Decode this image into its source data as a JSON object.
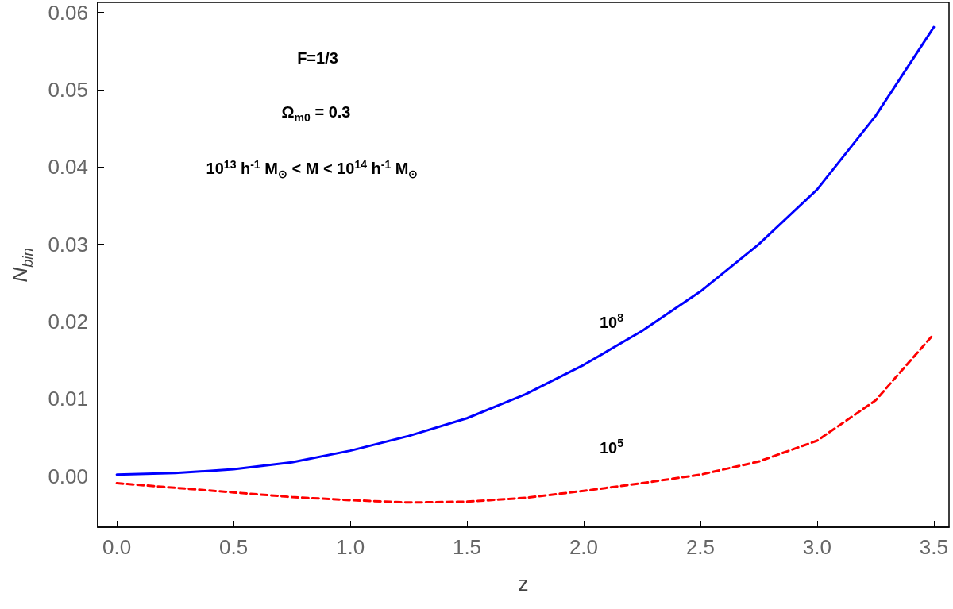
{
  "chart_data": {
    "type": "line",
    "xlabel": "z",
    "ylabel": "N$_{bin}$",
    "xlim": [
      -0.082,
      3.565
    ],
    "ylim": [
      -0.0066,
      0.0613
    ],
    "xticks": [
      {
        "value": 0,
        "label": "0.0"
      },
      {
        "value": 0.5,
        "label": "0.5"
      },
      {
        "value": 1,
        "label": "1.0"
      },
      {
        "value": 1.5,
        "label": "1.5"
      },
      {
        "value": 2,
        "label": "2.0"
      },
      {
        "value": 2.5,
        "label": "2.5"
      },
      {
        "value": 3,
        "label": "3.0"
      },
      {
        "value": 3.5,
        "label": "3.5"
      }
    ],
    "yticks": [
      {
        "value": 0,
        "label": "0.00"
      },
      {
        "value": 0.01,
        "label": "0.01"
      },
      {
        "value": 0.02,
        "label": "0.02"
      },
      {
        "value": 0.03,
        "label": "0.03"
      },
      {
        "value": 0.04,
        "label": "0.04"
      },
      {
        "value": 0.05,
        "label": "0.05"
      },
      {
        "value": 0.06,
        "label": "0.06"
      }
    ],
    "grid": false,
    "marker": "none",
    "x": [
      0,
      0.25,
      0.5,
      0.75,
      1,
      1.25,
      1.5,
      1.75,
      2,
      2.25,
      2.5,
      2.75,
      3,
      3.25,
      3.5
    ],
    "series": [
      {
        "name": "10$^{8}$",
        "color": "#0000ff",
        "line_style": "solid",
        "values": [
          0.0002,
          0.0004,
          0.0009,
          0.0018,
          0.0033,
          0.0052,
          0.0075,
          0.0106,
          0.0144,
          0.0188,
          0.0239,
          0.03,
          0.0371,
          0.0466,
          0.0581
        ]
      },
      {
        "name": "10$^{5}$",
        "color": "#ff0000",
        "line_style": "dashed",
        "values": [
          -0.0009,
          -0.0015,
          -0.0021,
          -0.0027,
          -0.0031,
          -0.0034,
          -0.0033,
          -0.0028,
          -0.0019,
          -0.0009,
          0.0002,
          0.0019,
          0.0046,
          0.0098,
          0.0184
        ]
      }
    ],
    "annotations": [
      "F=1/3",
      "Ω$_{m0}$ = 0.3",
      "10$^{13}$ h$^{-1}$ M$_{⊙}$ < M < 10$^{14}$ h$^{-1}$ M$_{⊙}$"
    ]
  }
}
